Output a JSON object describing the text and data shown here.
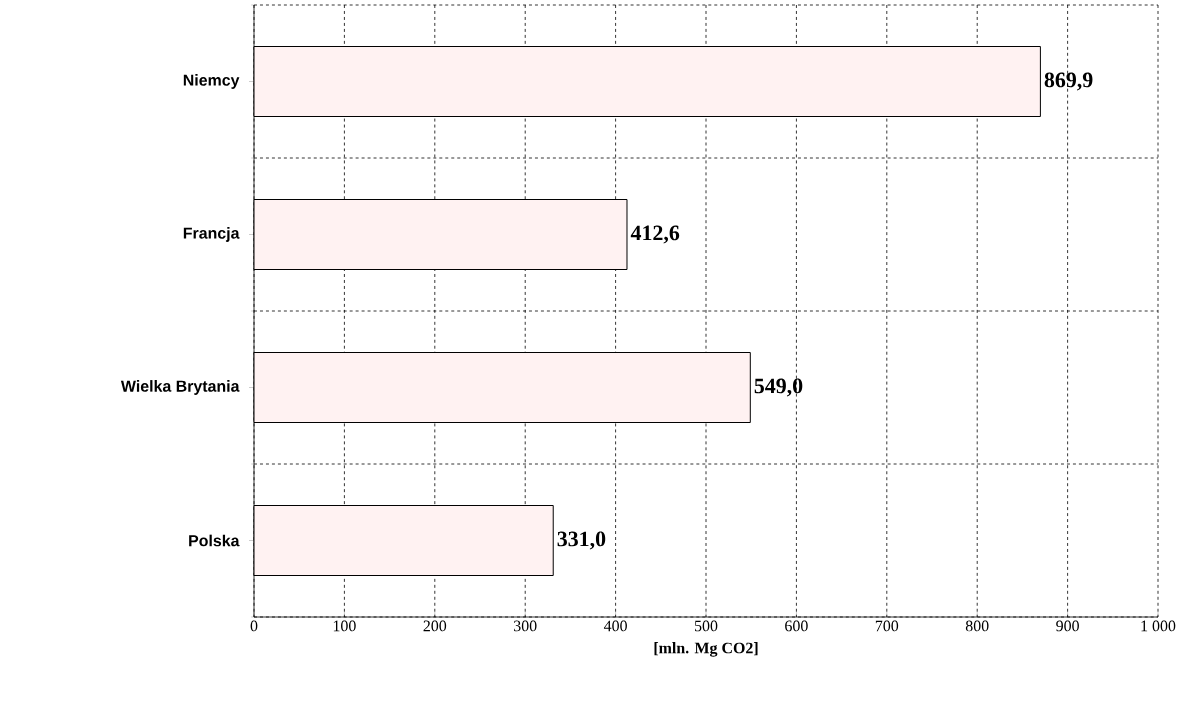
{
  "chart_data": {
    "type": "bar",
    "orientation": "horizontal",
    "xlabel": "[mln. Mg CO2]",
    "categories": [
      "Niemcy",
      "Francja",
      "Wielka Brytania",
      "Polska"
    ],
    "values": [
      869.9,
      412.6,
      549.0,
      331.0
    ],
    "value_labels": [
      "869,9",
      "412,6",
      "549,0",
      "331,0"
    ],
    "color": "#fff2f2",
    "xlim": [
      0,
      1000
    ],
    "xticks": [
      0,
      100,
      200,
      300,
      400,
      500,
      600,
      700,
      800,
      900,
      {
        "value": 1000,
        "label": "1 000"
      }
    ],
    "grid": true
  }
}
